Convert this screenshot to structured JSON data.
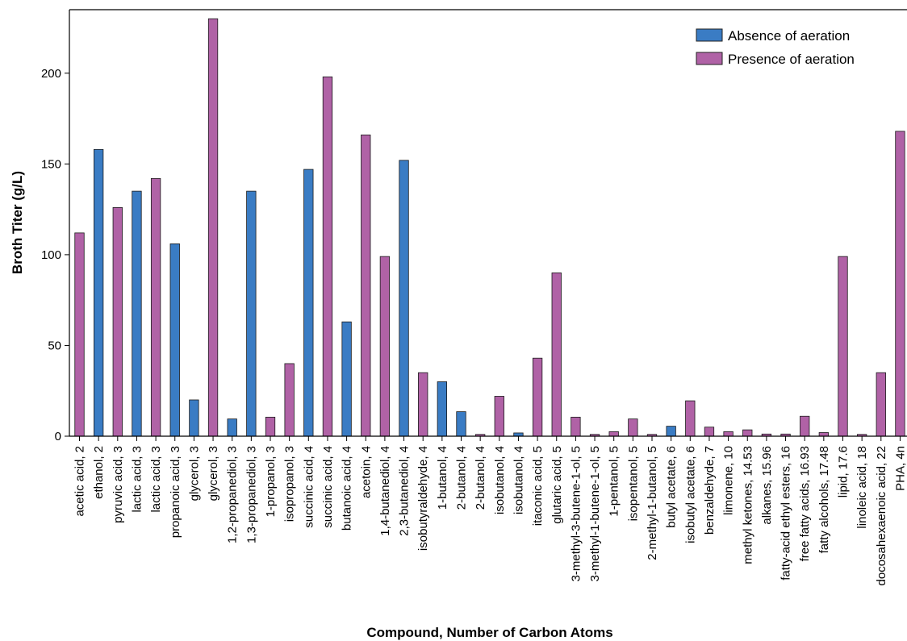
{
  "chart_data": {
    "type": "bar",
    "xlabel": "Compound, Number of Carbon Atoms",
    "ylabel": "Broth Titer (g/L)",
    "ylim": [
      0,
      235
    ],
    "yticks": [
      0,
      50,
      100,
      150,
      200
    ],
    "grid": false,
    "legend_position": "top-right",
    "series": [
      {
        "name": "Absence of aeration",
        "color": "#3a7cc4"
      },
      {
        "name": "Presence of aeration",
        "color": "#b062a6"
      }
    ],
    "categories": [
      "acetic acid, 2",
      "ethanol, 2",
      "pyruvic acid, 3",
      "lactic acid, 3",
      "lactic acid, 3",
      "propanoic acid, 3",
      "glycerol, 3",
      "glycerol, 3",
      "1,2-propanediol, 3",
      "1,3-propanediol, 3",
      "1-propanol, 3",
      "isopropanol, 3",
      "succinic acid, 4",
      "succinic acid, 4",
      "butanoic acid, 4",
      "acetoin, 4",
      "1,4-butanediol, 4",
      "2,3-butanediol, 4",
      "isobutyraldehyde, 4",
      "1-butanol, 4",
      "2-butanol, 4",
      "2-butanol, 4",
      "isobutanol, 4",
      "isobutanol, 4",
      "itaconic acid, 5",
      "glutaric acid, 5",
      "3-methyl-3-butene-1-ol, 5",
      "3-methyl-1-butene-1-ol, 5",
      "1-pentanol, 5",
      "isopentanol, 5",
      "2-methyl-1-butanol, 5",
      "butyl acetate, 6",
      "isobutyl acetate, 6",
      "benzaldehyde, 7",
      "limonene, 10",
      "methyl ketones, 14.53",
      "alkanes, 15.96",
      "fatty-acid ethyl esters, 16",
      "free fatty acids, 16.93",
      "fatty alcohols, 17.48",
      "lipid, 17.6",
      "linoleic acid, 18",
      "docosahexaenoic acid, 22",
      "PHA, 4n"
    ],
    "values": [
      112,
      158,
      126,
      135,
      142,
      106,
      20,
      230,
      9.5,
      135,
      10.5,
      40,
      147,
      198,
      63,
      166,
      99,
      152,
      35,
      30,
      13.5,
      1,
      22,
      1.8,
      43,
      90,
      10.5,
      1,
      2.5,
      9.5,
      1,
      5.5,
      19.5,
      5,
      2.5,
      3.5,
      1.2,
      1.2,
      11,
      2,
      99,
      1,
      35,
      168
    ],
    "aeration": [
      "presence",
      "absence",
      "presence",
      "absence",
      "presence",
      "absence",
      "absence",
      "presence",
      "absence",
      "absence",
      "presence",
      "presence",
      "absence",
      "presence",
      "absence",
      "presence",
      "presence",
      "absence",
      "presence",
      "absence",
      "absence",
      "presence",
      "presence",
      "absence",
      "presence",
      "presence",
      "presence",
      "presence",
      "presence",
      "presence",
      "presence",
      "absence",
      "presence",
      "presence",
      "presence",
      "presence",
      "presence",
      "presence",
      "presence",
      "presence",
      "presence",
      "presence",
      "presence",
      "presence"
    ]
  }
}
